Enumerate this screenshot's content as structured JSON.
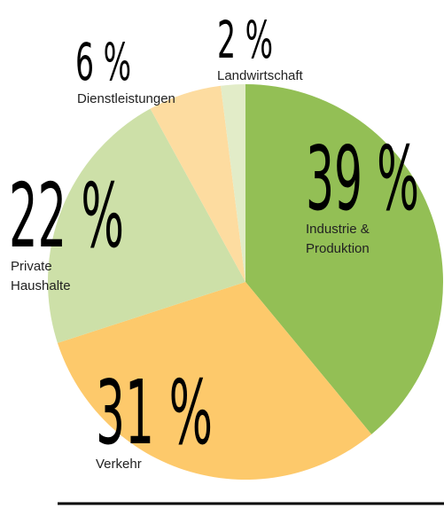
{
  "chart_data": {
    "type": "pie",
    "categories": [
      "Industrie & Produktion",
      "Verkehr",
      "Private Haushalte",
      "Dienstleistungen",
      "Landwirtschaft"
    ],
    "values": [
      39,
      31,
      22,
      6,
      2
    ],
    "value_labels": [
      "39 %",
      "31 %",
      "22 %",
      "6 %",
      "2 %"
    ],
    "colors": [
      "#93bf55",
      "#fdc96b",
      "#cde0a8",
      "#fddca0",
      "#e2ecc8"
    ]
  }
}
